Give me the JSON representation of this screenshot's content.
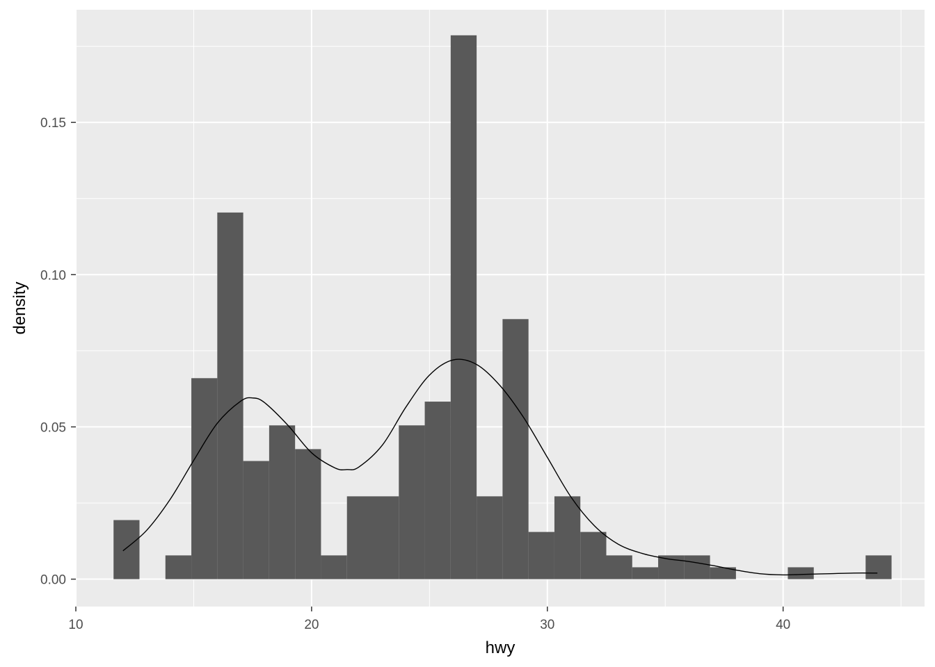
{
  "chart_data": {
    "type": "histogram",
    "xlabel": "hwy",
    "ylabel": "density",
    "xlim": [
      10,
      46
    ],
    "ylim": [
      -0.009,
      0.187
    ],
    "x_ticks": [
      10,
      20,
      30,
      40
    ],
    "x_tick_labels": [
      "10",
      "20",
      "30",
      "40"
    ],
    "y_ticks": [
      0.0,
      0.05,
      0.1,
      0.15
    ],
    "y_tick_labels": [
      "0.00",
      "0.05",
      "0.10",
      "0.15"
    ],
    "grid": true,
    "bins": [
      {
        "x0": 11.6,
        "x1": 12.7,
        "density": 0.0194
      },
      {
        "x0": 12.7,
        "x1": 13.8,
        "density": 0.0
      },
      {
        "x0": 13.8,
        "x1": 14.9,
        "density": 0.0078
      },
      {
        "x0": 14.9,
        "x1": 16.0,
        "density": 0.066
      },
      {
        "x0": 16.0,
        "x1": 17.1,
        "density": 0.1204
      },
      {
        "x0": 17.1,
        "x1": 18.2,
        "density": 0.0388
      },
      {
        "x0": 18.2,
        "x1": 19.3,
        "density": 0.0505
      },
      {
        "x0": 19.3,
        "x1": 20.4,
        "density": 0.0427
      },
      {
        "x0": 20.4,
        "x1": 21.5,
        "density": 0.0078
      },
      {
        "x0": 21.5,
        "x1": 22.6,
        "density": 0.0272
      },
      {
        "x0": 22.6,
        "x1": 23.7,
        "density": 0.0272
      },
      {
        "x0": 23.7,
        "x1": 24.8,
        "density": 0.0505
      },
      {
        "x0": 24.8,
        "x1": 25.9,
        "density": 0.0583
      },
      {
        "x0": 25.9,
        "x1": 27.0,
        "density": 0.1786
      },
      {
        "x0": 27.0,
        "x1": 28.1,
        "density": 0.0272
      },
      {
        "x0": 28.1,
        "x1": 29.2,
        "density": 0.0854
      },
      {
        "x0": 29.2,
        "x1": 30.3,
        "density": 0.0155
      },
      {
        "x0": 30.3,
        "x1": 31.4,
        "density": 0.0272
      },
      {
        "x0": 31.4,
        "x1": 32.5,
        "density": 0.0155
      },
      {
        "x0": 32.5,
        "x1": 33.6,
        "density": 0.0078
      },
      {
        "x0": 33.6,
        "x1": 34.7,
        "density": 0.0039
      },
      {
        "x0": 34.7,
        "x1": 35.8,
        "density": 0.0078
      },
      {
        "x0": 35.8,
        "x1": 36.9,
        "density": 0.0078
      },
      {
        "x0": 36.9,
        "x1": 38.0,
        "density": 0.0039
      },
      {
        "x0": 38.0,
        "x1": 39.1,
        "density": 0.0
      },
      {
        "x0": 39.1,
        "x1": 40.2,
        "density": 0.0
      },
      {
        "x0": 40.2,
        "x1": 41.3,
        "density": 0.0039
      },
      {
        "x0": 41.3,
        "x1": 42.4,
        "density": 0.0
      },
      {
        "x0": 42.4,
        "x1": 43.5,
        "density": 0.0
      },
      {
        "x0": 43.5,
        "x1": 44.6,
        "density": 0.0078
      }
    ],
    "density_curve": {
      "x": [
        12,
        13,
        14,
        15,
        16,
        17,
        17.5,
        18,
        19,
        20,
        21,
        21.5,
        22,
        23,
        24,
        25,
        26,
        27,
        28,
        29,
        30,
        31,
        32,
        33,
        34,
        35,
        36,
        37,
        38,
        39,
        40,
        41,
        42,
        43,
        44
      ],
      "y": [
        0.0093,
        0.016,
        0.0262,
        0.039,
        0.0512,
        0.0585,
        0.0595,
        0.058,
        0.0505,
        0.0415,
        0.0365,
        0.036,
        0.0368,
        0.044,
        0.0565,
        0.067,
        0.072,
        0.0705,
        0.0635,
        0.053,
        0.04,
        0.027,
        0.0175,
        0.0115,
        0.0085,
        0.0068,
        0.0058,
        0.0045,
        0.003,
        0.0018,
        0.0014,
        0.0016,
        0.0018,
        0.002,
        0.002
      ]
    },
    "colors": {
      "panel_bg": "#ebebeb",
      "grid_major": "#ffffff",
      "bar_fill": "#595959",
      "curve": "#000000",
      "tick_text": "#4d4d4d",
      "tick_mark": "#333333",
      "title_text": "#000000"
    }
  }
}
